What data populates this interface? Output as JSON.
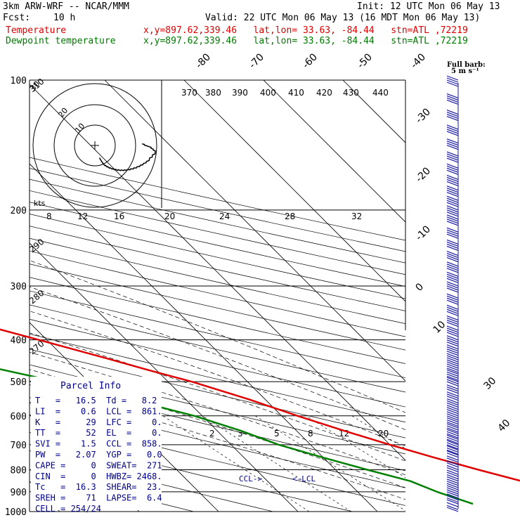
{
  "header": {
    "model": "3km ARW-WRF -- NCAR/MMM",
    "init": "Init: 12 UTC Mon 06 May 13",
    "fcst_label": "Fcst:",
    "fcst_value": "10 h",
    "valid": "Valid: 22 UTC Mon 06 May 13 (16 MDT Mon 06 May 13)",
    "temp_label": "Temperature",
    "dew_label": "Dewpoint temperature",
    "temp_info": "x,y=897.62,339.46   lat,lon= 33.63, -84.44   stn=ATL ,72219",
    "dew_info": "x,y=897.62,339.46   lat,lon= 33.63, -84.44   stn=ATL ,72219"
  },
  "colors": {
    "temperature": "#e00000",
    "dewpoint": "#008000",
    "wind": "#1a1aa0",
    "parcel": "#00008b"
  },
  "barb_label": [
    "Full barb:",
    "5 m s⁻¹"
  ],
  "parcel_info": {
    "title": "Parcel Info",
    "rows": [
      "T   =   16.5  Td =   8.2",
      "LI  =    0.6  LCL =  861.",
      "K   =     29  LFC =    0.",
      "TT  =     52  EL  =    0.",
      "SVI =    1.5  CCL =  858.",
      "PW  =   2.07  YGP =   0.0",
      "CAPE =     0  SWEAT=  271",
      "CIN  =     0  HWBZ= 2468.",
      "Tc   =  16.3  SHEAR=  23.",
      "SREH =    71  LAPSE=  6.4",
      "CELL = 254/24"
    ]
  },
  "markers": {
    "ccl": "CCL->",
    "lcl": "<-LCL"
  },
  "hodograph": {
    "kts_label": "kts",
    "ring_labels": [
      "10",
      "20",
      "30"
    ]
  },
  "chart_data": {
    "type": "line",
    "title": "",
    "pressure_axis": {
      "scale": "log",
      "ticks": [
        100,
        200,
        300,
        400,
        500,
        600,
        700,
        800,
        900,
        1000
      ],
      "ylim": [
        1000,
        100
      ]
    },
    "isotherm_labels": [
      "-80",
      "-70",
      "-60",
      "-50",
      "-40",
      "-30",
      "-20",
      "-10",
      "0",
      "10",
      "30",
      "40"
    ],
    "theta_labels": [
      "370",
      "380",
      "390",
      "400",
      "410",
      "420",
      "430",
      "440"
    ],
    "theta_left_labels": [
      "310",
      "290",
      "280",
      "270"
    ],
    "mixing_ratio_top_labels": [
      "8",
      "12",
      "16",
      "20",
      "24",
      "28",
      "32"
    ],
    "mixing_ratio_labels": [
      "2",
      "3",
      "5",
      "8",
      "12",
      "20"
    ],
    "series": [
      {
        "name": "Temperature",
        "pressure": [
          910,
          880,
          850,
          800,
          750,
          700,
          650,
          600,
          550,
          500,
          470,
          440,
          400,
          370,
          350,
          330,
          300,
          250,
          200,
          170,
          150,
          130,
          115,
          100
        ],
        "temperature": [
          29,
          25,
          22,
          18,
          14,
          10,
          6,
          2,
          -2,
          -7,
          -11,
          -15,
          -21,
          -26,
          -31,
          -35,
          -38,
          -44,
          -50,
          -55,
          -58,
          -62,
          -65,
          -68
        ]
      },
      {
        "name": "Dewpoint temperature",
        "pressure": [
          960,
          900,
          850,
          800,
          750,
          700,
          650,
          600,
          550,
          500,
          460,
          400,
          370,
          340,
          300,
          280,
          250,
          220,
          200,
          180,
          160,
          140,
          125,
          115,
          100
        ],
        "dewpoint": [
          13,
          10,
          8,
          4,
          0,
          -4,
          -7,
          -11,
          -17,
          -24,
          -31,
          -38,
          -42,
          -48,
          -66,
          -71,
          -72,
          -74,
          -84,
          -85,
          -85,
          -87,
          -89,
          -90,
          -90
        ]
      }
    ],
    "wind": {
      "pressure": [
        1000,
        990,
        975,
        960,
        940,
        920,
        900,
        880,
        860,
        840,
        820,
        800,
        780,
        760,
        740,
        720,
        700,
        680,
        660,
        640,
        620,
        600,
        580,
        560,
        540,
        520,
        500,
        480,
        460,
        440,
        420,
        400,
        380,
        360,
        340,
        320,
        300,
        285,
        270,
        255,
        240,
        225,
        210,
        200,
        190,
        180,
        170,
        160,
        150,
        140,
        130,
        120,
        110,
        100
      ],
      "speed_ms": [
        6,
        6,
        7,
        8,
        9,
        10,
        10,
        11,
        11,
        12,
        12,
        13,
        13,
        14,
        14,
        15,
        15,
        16,
        16,
        17,
        17,
        18,
        18,
        19,
        19,
        20,
        20,
        21,
        21,
        22,
        22,
        23,
        23,
        24,
        24,
        25,
        25,
        25,
        26,
        26,
        26,
        27,
        27,
        27,
        27,
        26,
        26,
        25,
        25,
        24,
        23,
        22,
        22,
        21
      ]
    }
  }
}
